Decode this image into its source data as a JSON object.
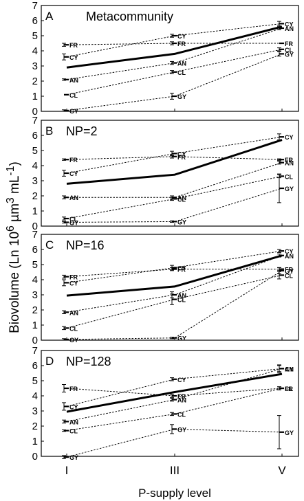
{
  "figure": {
    "ylabel_prefix": "Biovolume (Ln 10",
    "ylabel_sup1": "6",
    "ylabel_mid": " µm",
    "ylabel_sup2": "3",
    "ylabel_mid2": " mL",
    "ylabel_sup3": "-1",
    "ylabel_suffix": ")",
    "xlabel": "P-supply level"
  },
  "chart_data": [
    {
      "type": "line",
      "panel_letter": "A",
      "title": "Metacommunity",
      "categories": [
        "I",
        "III",
        "V"
      ],
      "ylim": [
        0,
        7
      ],
      "yticks": [
        0,
        1,
        2,
        3,
        4,
        5,
        6,
        7
      ],
      "mean": [
        2.9,
        3.8,
        5.6
      ],
      "series": [
        {
          "name": "FR",
          "values": [
            4.4,
            4.5,
            4.5
          ],
          "errors": [
            0.1,
            0.1,
            0.0
          ]
        },
        {
          "name": "CY",
          "values": [
            3.6,
            5.0,
            5.8
          ],
          "errors": [
            0.2,
            0.1,
            0.15
          ]
        },
        {
          "name": "AN",
          "values": [
            2.1,
            3.2,
            5.5
          ],
          "errors": [
            0.05,
            0.1,
            0.1
          ]
        },
        {
          "name": "CL",
          "values": [
            1.1,
            2.6,
            4.1
          ],
          "errors": [
            0.0,
            0.1,
            0.1
          ]
        },
        {
          "name": "GY",
          "values": [
            0.05,
            1.0,
            3.8
          ],
          "errors": [
            0.05,
            0.2,
            0.15
          ]
        }
      ]
    },
    {
      "type": "line",
      "panel_letter": "B",
      "title": "NP=2",
      "categories": [
        "I",
        "III",
        "V"
      ],
      "ylim": [
        0,
        7
      ],
      "yticks": [
        0,
        1,
        2,
        3,
        4,
        5,
        6,
        7
      ],
      "mean": [
        2.8,
        3.4,
        5.7
      ],
      "series": [
        {
          "name": "FR",
          "values": [
            4.4,
            4.6,
            4.4
          ],
          "errors": [
            0.05,
            0.1,
            0.05
          ]
        },
        {
          "name": "CY",
          "values": [
            3.5,
            4.8,
            5.9
          ],
          "errors": [
            0.2,
            0.15,
            0.2
          ]
        },
        {
          "name": "AN",
          "values": [
            1.9,
            1.9,
            4.2
          ],
          "errors": [
            0.1,
            0.1,
            0.1
          ]
        },
        {
          "name": "CL",
          "values": [
            0.5,
            1.8,
            3.3
          ],
          "errors": [
            0.1,
            0.1,
            0.1
          ]
        },
        {
          "name": "GY",
          "values": [
            0.25,
            0.3,
            2.5
          ],
          "errors": [
            0.05,
            0.05,
            0.95
          ]
        }
      ]
    },
    {
      "type": "line",
      "panel_letter": "C",
      "title": "NP=16",
      "categories": [
        "I",
        "III",
        "V"
      ],
      "ylim": [
        0,
        7
      ],
      "yticks": [
        0,
        1,
        2,
        3,
        4,
        5,
        6,
        7
      ],
      "mean": [
        2.95,
        3.55,
        5.6
      ],
      "series": [
        {
          "name": "FR",
          "values": [
            4.2,
            4.7,
            4.7
          ],
          "errors": [
            0.1,
            0.1,
            0.1
          ]
        },
        {
          "name": "CY",
          "values": [
            3.8,
            4.8,
            5.9
          ],
          "errors": [
            0.2,
            0.15,
            0.1
          ]
        },
        {
          "name": "AN",
          "values": [
            1.85,
            3.0,
            5.6
          ],
          "errors": [
            0.1,
            0.2,
            0.1
          ]
        },
        {
          "name": "CL",
          "values": [
            0.8,
            2.7,
            4.3
          ],
          "errors": [
            0.1,
            0.35,
            0.25
          ]
        },
        {
          "name": "GY",
          "values": [
            0.05,
            0.15,
            4.6
          ],
          "errors": [
            0.05,
            0.05,
            0.2
          ]
        }
      ]
    },
    {
      "type": "line",
      "panel_letter": "D",
      "title": "NP=128",
      "categories": [
        "I",
        "III",
        "V"
      ],
      "ylim": [
        0,
        7
      ],
      "yticks": [
        0,
        1,
        2,
        3,
        4,
        5,
        6,
        7
      ],
      "mean": [
        2.95,
        4.25,
        5.45
      ],
      "series": [
        {
          "name": "FR",
          "values": [
            4.5,
            4.0,
            4.5
          ],
          "errors": [
            0.25,
            0.1,
            0.1
          ]
        },
        {
          "name": "CY",
          "values": [
            3.3,
            5.1,
            5.8
          ],
          "errors": [
            0.25,
            0.1,
            0.25
          ]
        },
        {
          "name": "AN",
          "values": [
            2.3,
            3.75,
            5.8
          ],
          "errors": [
            0.1,
            0.1,
            0.2
          ]
        },
        {
          "name": "CL",
          "values": [
            1.7,
            2.8,
            4.5
          ],
          "errors": [
            0.05,
            0.1,
            0.1
          ]
        },
        {
          "name": "GY",
          "values": [
            -0.05,
            1.8,
            1.6
          ],
          "errors": [
            0.1,
            0.3,
            1.1
          ]
        }
      ]
    }
  ]
}
